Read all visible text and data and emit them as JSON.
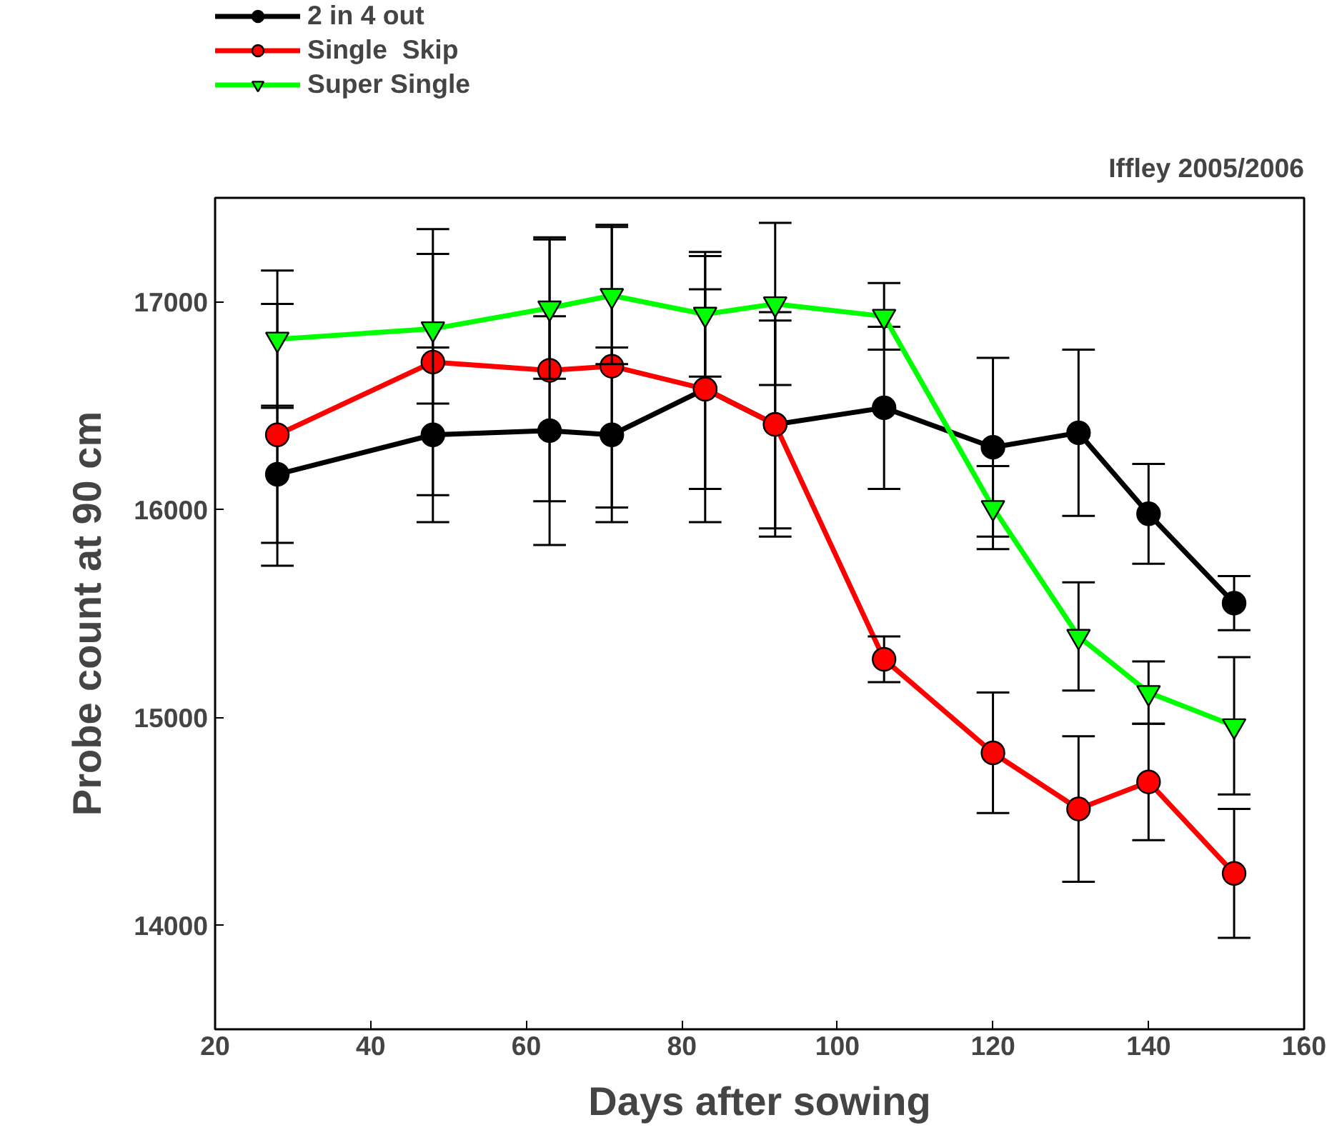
{
  "chart_data": {
    "type": "line",
    "title": "Iffley 2005/2006",
    "xlabel": "Days after sowing",
    "ylabel": "Probe count at 90 cm",
    "x": [
      28,
      48,
      63,
      71,
      83,
      92,
      106,
      120,
      131,
      140,
      151
    ],
    "xlim": [
      20,
      160
    ],
    "xticks": [
      20,
      40,
      60,
      80,
      100,
      120,
      140,
      160
    ],
    "ylim": [
      13500,
      17500
    ],
    "yticks": [
      14000,
      15000,
      16000,
      17000
    ],
    "grid": false,
    "legend": "top left",
    "line_style": "solid",
    "series": [
      {
        "name": "2 in 4 out",
        "color": "#000000",
        "marker": "circle",
        "values": [
          16170,
          16360,
          16380,
          16360,
          16580,
          16410,
          16490,
          16300,
          16370,
          15980,
          15550
        ],
        "errors": [
          330,
          420,
          550,
          420,
          480,
          500,
          390,
          430,
          400,
          240,
          130
        ]
      },
      {
        "name": "Single  Skip",
        "color": "#ff0000",
        "marker": "circle",
        "values": [
          16360,
          16710,
          16670,
          16690,
          16580,
          16410,
          15280,
          14830,
          14560,
          14690,
          14250
        ],
        "errors": [
          630,
          640,
          630,
          680,
          640,
          540,
          110,
          290,
          350,
          280,
          310
        ]
      },
      {
        "name": "Super Single",
        "color": "#00ff00",
        "marker": "triangle",
        "values": [
          16820,
          16870,
          16970,
          17030,
          16940,
          16990,
          16930,
          16010,
          15390,
          15120,
          14960
        ],
        "errors": [
          330,
          360,
          340,
          330,
          300,
          390,
          160,
          200,
          260,
          150,
          330
        ]
      }
    ]
  }
}
